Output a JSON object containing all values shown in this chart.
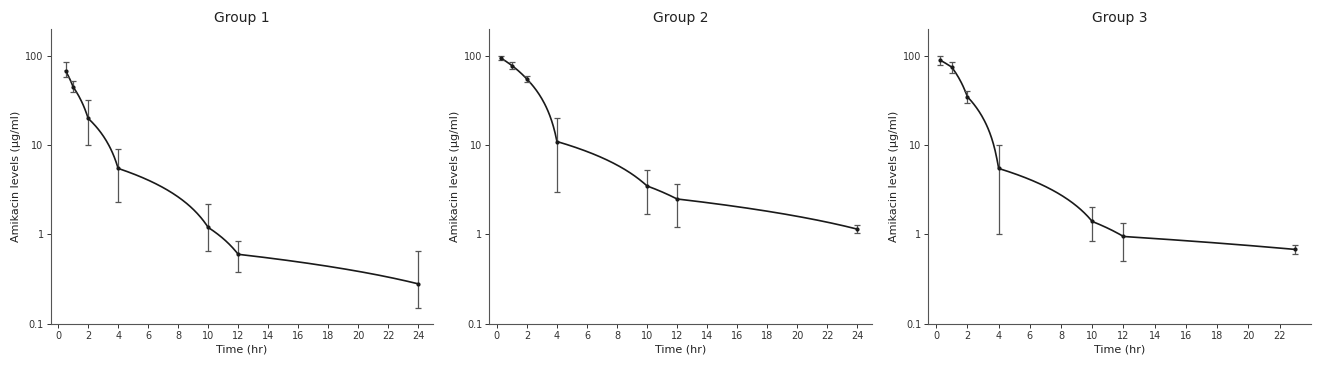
{
  "groups": [
    {
      "title": "Group 1",
      "x_data": [
        0.5,
        1,
        2,
        4,
        10,
        12,
        24
      ],
      "y_mean": [
        68,
        45,
        20,
        5.5,
        1.2,
        0.6,
        0.28
      ],
      "y_err_upper": [
        18,
        8,
        12,
        3.5,
        1.0,
        0.25,
        0.38
      ],
      "y_err_lower": [
        10,
        6,
        10,
        3.2,
        0.55,
        0.22,
        0.13
      ],
      "xlim": [
        -0.5,
        25
      ],
      "xticks": [
        0,
        2,
        4,
        6,
        8,
        10,
        12,
        14,
        16,
        18,
        20,
        22,
        24
      ],
      "ylim": [
        0.1,
        200
      ],
      "ylabel": "Amikacin levels (μg/ml)",
      "xlabel": "Time (hr)"
    },
    {
      "title": "Group 2",
      "x_data": [
        0.25,
        1,
        2,
        4,
        10,
        12,
        24
      ],
      "y_mean": [
        95,
        78,
        55,
        11,
        3.5,
        2.5,
        1.15
      ],
      "y_err_upper": [
        5,
        8,
        4,
        9,
        1.8,
        1.2,
        0.12
      ],
      "y_err_lower": [
        5,
        6,
        4,
        8,
        1.8,
        1.3,
        0.12
      ],
      "xlim": [
        -0.5,
        25
      ],
      "xticks": [
        0,
        2,
        4,
        6,
        8,
        10,
        12,
        14,
        16,
        18,
        20,
        22,
        24
      ],
      "ylim": [
        0.1,
        200
      ],
      "ylabel": "Amikacin levels (μg/ml)",
      "xlabel": "Time (hr)"
    },
    {
      "title": "Group 3",
      "x_data": [
        0.25,
        1,
        2,
        4,
        10,
        12,
        23
      ],
      "y_mean": [
        90,
        75,
        35,
        5.5,
        1.4,
        0.95,
        0.68
      ],
      "y_err_upper": [
        10,
        10,
        5,
        4.5,
        0.65,
        0.4,
        0.08
      ],
      "y_err_lower": [
        10,
        10,
        5,
        4.5,
        0.55,
        0.45,
        0.08
      ],
      "xlim": [
        -0.5,
        24
      ],
      "xticks": [
        0,
        2,
        4,
        6,
        8,
        10,
        12,
        14,
        16,
        18,
        20,
        22
      ],
      "ylim": [
        0.1,
        200
      ],
      "ylabel": "Amikacin levels (μg/ml)",
      "xlabel": "Time (hr)"
    }
  ],
  "bg_color": "#ffffff",
  "line_color": "#1a1a1a",
  "error_color": "#555555",
  "title_fontsize": 10,
  "label_fontsize": 8,
  "tick_fontsize": 7
}
